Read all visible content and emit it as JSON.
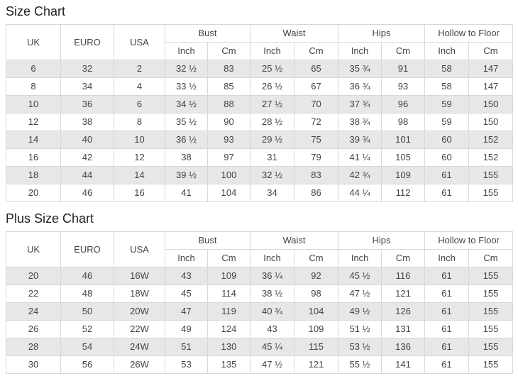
{
  "colors": {
    "background": "#ffffff",
    "border": "#d8d8d8",
    "stripe": "#e7e7e7",
    "text": "#444444",
    "title": "#222222"
  },
  "tables": [
    {
      "title": "Size Chart",
      "simple_headers": [
        "UK",
        "EURO",
        "USA"
      ],
      "group_headers": [
        {
          "label": "Bust",
          "sub": [
            "Inch",
            "Cm"
          ]
        },
        {
          "label": "Waist",
          "sub": [
            "Inch",
            "Cm"
          ]
        },
        {
          "label": "Hips",
          "sub": [
            "Inch",
            "Cm"
          ]
        },
        {
          "label": "Hollow to Floor",
          "sub": [
            "Inch",
            "Cm"
          ]
        }
      ],
      "rows": [
        [
          "6",
          "32",
          "2",
          "32 ½",
          "83",
          "25 ½",
          "65",
          "35 ¾",
          "91",
          "58",
          "147"
        ],
        [
          "8",
          "34",
          "4",
          "33 ½",
          "85",
          "26 ½",
          "67",
          "36 ¾",
          "93",
          "58",
          "147"
        ],
        [
          "10",
          "36",
          "6",
          "34 ½",
          "88",
          "27 ½",
          "70",
          "37 ¾",
          "96",
          "59",
          "150"
        ],
        [
          "12",
          "38",
          "8",
          "35 ½",
          "90",
          "28 ½",
          "72",
          "38 ¾",
          "98",
          "59",
          "150"
        ],
        [
          "14",
          "40",
          "10",
          "36 ½",
          "93",
          "29 ½",
          "75",
          "39 ¾",
          "101",
          "60",
          "152"
        ],
        [
          "16",
          "42",
          "12",
          "38",
          "97",
          "31",
          "79",
          "41 ¼",
          "105",
          "60",
          "152"
        ],
        [
          "18",
          "44",
          "14",
          "39 ½",
          "100",
          "32 ½",
          "83",
          "42 ¾",
          "109",
          "61",
          "155"
        ],
        [
          "20",
          "46",
          "16",
          "41",
          "104",
          "34",
          "86",
          "44 ¼",
          "112",
          "61",
          "155"
        ]
      ]
    },
    {
      "title": "Plus Size Chart",
      "simple_headers": [
        "UK",
        "EURO",
        "USA"
      ],
      "group_headers": [
        {
          "label": "Bust",
          "sub": [
            "Inch",
            "Cm"
          ]
        },
        {
          "label": "Waist",
          "sub": [
            "Inch",
            "Cm"
          ]
        },
        {
          "label": "Hips",
          "sub": [
            "Inch",
            "Cm"
          ]
        },
        {
          "label": "Hollow to Floor",
          "sub": [
            "Inch",
            "Cm"
          ]
        }
      ],
      "rows": [
        [
          "20",
          "46",
          "16W",
          "43",
          "109",
          "36 ¼",
          "92",
          "45 ½",
          "116",
          "61",
          "155"
        ],
        [
          "22",
          "48",
          "18W",
          "45",
          "114",
          "38 ½",
          "98",
          "47 ½",
          "121",
          "61",
          "155"
        ],
        [
          "24",
          "50",
          "20W",
          "47",
          "119",
          "40 ¾",
          "104",
          "49 ½",
          "126",
          "61",
          "155"
        ],
        [
          "26",
          "52",
          "22W",
          "49",
          "124",
          "43",
          "109",
          "51 ½",
          "131",
          "61",
          "155"
        ],
        [
          "28",
          "54",
          "24W",
          "51",
          "130",
          "45 ¼",
          "115",
          "53 ½",
          "136",
          "61",
          "155"
        ],
        [
          "30",
          "56",
          "26W",
          "53",
          "135",
          "47 ½",
          "121",
          "55 ½",
          "141",
          "61",
          "155"
        ]
      ]
    }
  ]
}
